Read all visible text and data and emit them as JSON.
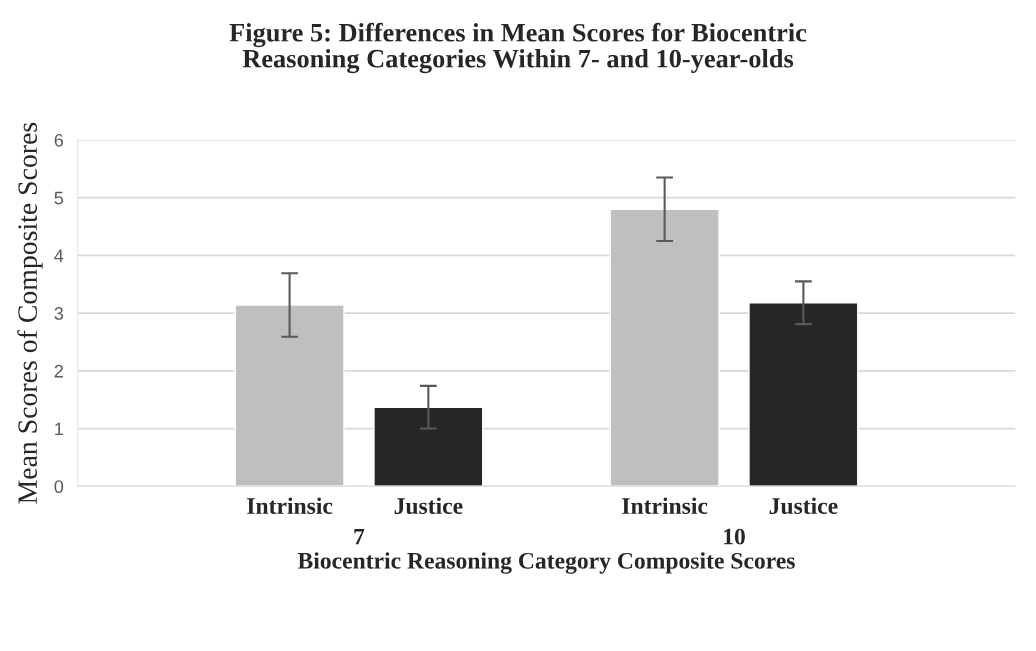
{
  "chart_data": {
    "type": "bar",
    "title": "Figure 5: Differences in Mean Scores for Biocentric\nReasoning Categories Within 7- and 10-year-olds",
    "xlabel": "Biocentric Reasoning Category Composite Scores",
    "ylabel": "Mean Scores of Composite Scores",
    "categories": [
      "7",
      "10"
    ],
    "series": [
      {
        "name": "Intrinsic",
        "color": "#bfbfbf",
        "values": [
          3.14,
          4.8
        ],
        "errors": [
          0.55,
          0.55
        ]
      },
      {
        "name": "Justice",
        "color": "#262626",
        "values": [
          1.37,
          3.18
        ],
        "errors": [
          0.37,
          0.37
        ]
      }
    ],
    "ylim": [
      0,
      6
    ],
    "yticks": [
      0,
      1,
      2,
      3,
      4,
      5,
      6
    ],
    "grid": "y"
  }
}
